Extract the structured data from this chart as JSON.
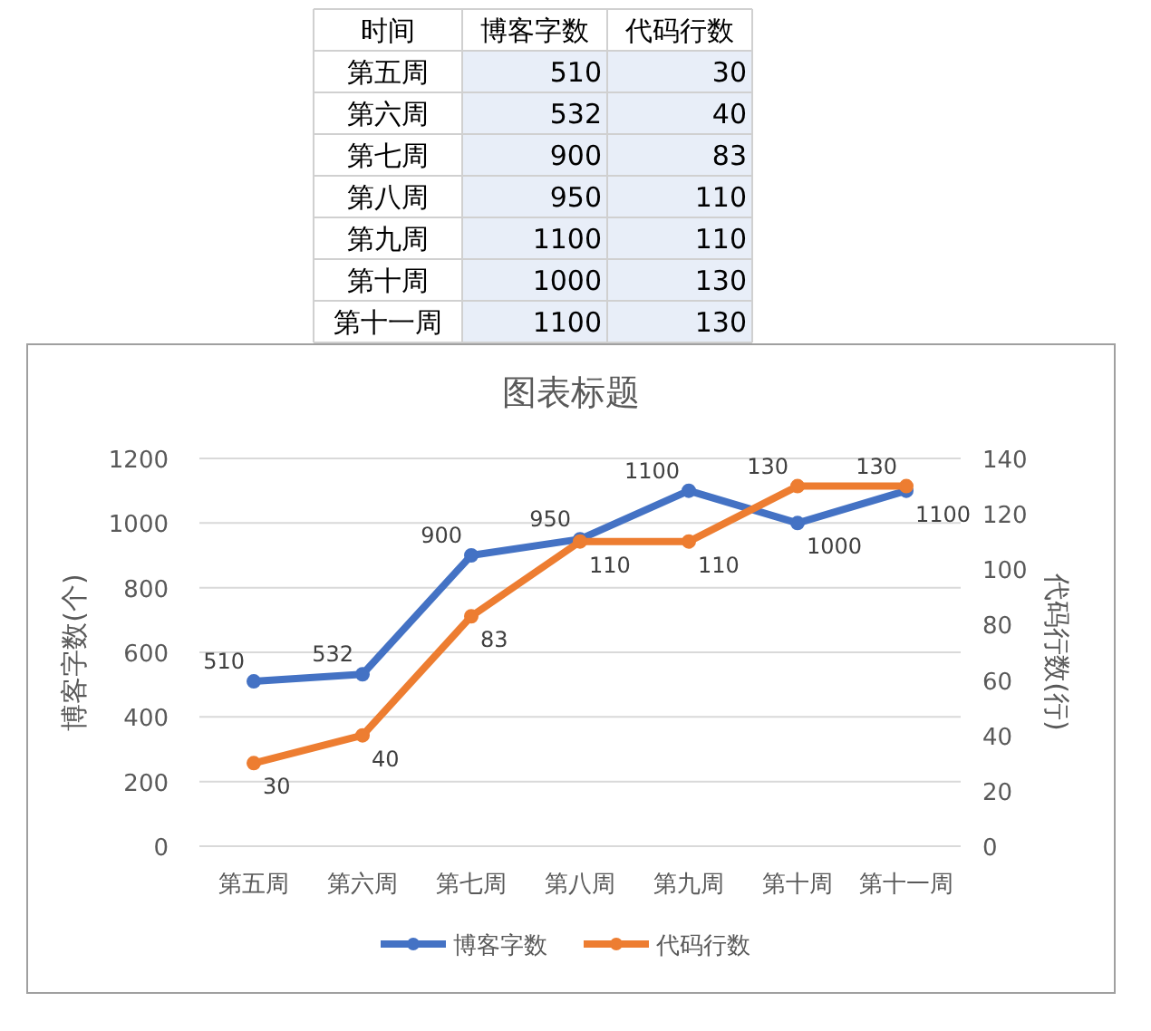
{
  "chart_data": [
    {
      "type": "other",
      "annotations": [
        "时间"
      ],
      "categories": [
        "第五周",
        "第六周",
        "第七周",
        "第八周",
        "第九周",
        "第十周",
        "第十一周"
      ],
      "series": [
        {
          "name": "博客字数",
          "values": [
            510,
            532,
            900,
            950,
            1100,
            1000,
            1100
          ]
        },
        {
          "name": "代码行数",
          "values": [
            30,
            40,
            83,
            110,
            110,
            130,
            130
          ]
        }
      ],
      "data_labels": true
    },
    {
      "type": "line",
      "title": "图表标题",
      "ylabel": "博客字数(个)",
      "y2label": "代码行数(行)",
      "categories": [
        "第五周",
        "第六周",
        "第七周",
        "第八周",
        "第九周",
        "第十周",
        "第十一周"
      ],
      "series": [
        {
          "name": "博客字数",
          "color": "#4472c4",
          "values": [
            510,
            532,
            900,
            950,
            1100,
            1000,
            1100
          ]
        },
        {
          "name": "代码行数",
          "color": "#ed7d31",
          "axis": "y2",
          "values": [
            30,
            40,
            83,
            110,
            110,
            130,
            130
          ]
        }
      ],
      "ylim": [
        0,
        1200
      ],
      "yticks": [
        0,
        200,
        400,
        600,
        800,
        1000,
        1200
      ],
      "y2lim": [
        0,
        140
      ],
      "y2ticks": [
        0,
        20,
        40,
        60,
        80,
        100,
        120,
        140
      ],
      "grid": "y",
      "legend": "bottom",
      "marker": "circle",
      "line_style": "solid",
      "data_labels": true
    }
  ]
}
